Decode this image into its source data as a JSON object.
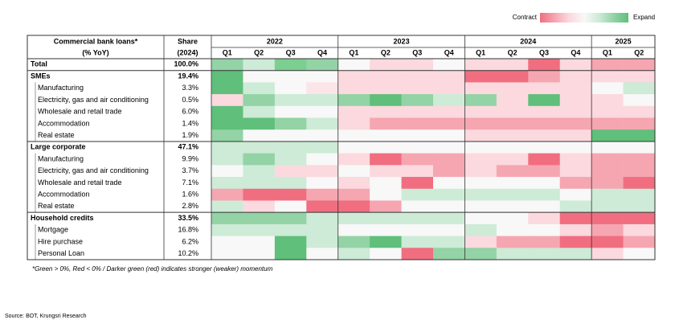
{
  "legend": {
    "left": "Contract",
    "right": "Expand",
    "colors": [
      "#f06e80",
      "#f6a6b1",
      "#fbd9de",
      "#f8f8f8",
      "#cdebd6",
      "#93d3a5",
      "#5fbf7b"
    ]
  },
  "table": {
    "header": {
      "title": [
        "Commercial bank loans*",
        "(% YoY)"
      ],
      "share": [
        "Share",
        "(2024)"
      ],
      "years": [
        {
          "year": "2022",
          "quarters": [
            "Q1",
            "Q2",
            "Q3",
            "Q4"
          ]
        },
        {
          "year": "2023",
          "quarters": [
            "Q1",
            "Q2",
            "Q3",
            "Q4"
          ]
        },
        {
          "year": "2024",
          "quarters": [
            "Q1",
            "Q2",
            "Q3",
            "Q4"
          ]
        },
        {
          "year": "2025",
          "quarters": [
            "Q1",
            "Q2"
          ]
        }
      ]
    },
    "rows": [
      {
        "label": "Total",
        "share": "100.0%",
        "group": true,
        "colors": [
          "#93d3a5",
          "#cdebd6",
          "#7ccf90",
          "#93d3a5",
          "#f8f8f8",
          "#fbd9de",
          "#fbd9de",
          "#f8f8f8",
          "#fbd9de",
          "#fbd9de",
          "#f06e80",
          "#fbd9de",
          "#f6a6b1",
          "#f6a6b1"
        ]
      },
      {
        "label": "SMEs",
        "share": "19.4%",
        "group": true,
        "colors": [
          "#5fbf7b",
          "#f8f8f8",
          "#f8f8f8",
          "#f8f8f8",
          "#fbd9de",
          "#fbd9de",
          "#fbd9de",
          "#fbd9de",
          "#f06e80",
          "#f06e80",
          "#f6a6b1",
          "#fbd9de",
          "#fbd9de",
          "#fbd9de"
        ]
      },
      {
        "label": "Manufacturing",
        "share": "3.3%",
        "group": false,
        "colors": [
          "#5fbf7b",
          "#cdebd6",
          "#f8f8f8",
          "#fbe5e8",
          "#fbd9de",
          "#fbd9de",
          "#fbd9de",
          "#fbd9de",
          "#fbd9de",
          "#fbd9de",
          "#fbd9de",
          "#fbd9de",
          "#f8f8f8",
          "#cdebd6"
        ]
      },
      {
        "label": "Electricity, gas and air conditioning",
        "share": "0.5%",
        "group": false,
        "colors": [
          "#fbd9de",
          "#93d3a5",
          "#cdebd6",
          "#cdebd6",
          "#93d3a5",
          "#5fbf7b",
          "#93d3a5",
          "#cdebd6",
          "#93d3a5",
          "#fbd9de",
          "#5fbf7b",
          "#fbd9de",
          "#fbd9de",
          "#f8f8f8"
        ]
      },
      {
        "label": "Wholesale and retail trade",
        "share": "6.0%",
        "group": false,
        "colors": [
          "#5fbf7b",
          "#cdebd6",
          "#f8f8f8",
          "#f8f8f8",
          "#fbd9de",
          "#fbd9de",
          "#fbd9de",
          "#fbd9de",
          "#fbd9de",
          "#fbd9de",
          "#fbd9de",
          "#fbd9de",
          "#fbd9de",
          "#fbd9de"
        ]
      },
      {
        "label": "Accommodation",
        "share": "1.4%",
        "group": false,
        "colors": [
          "#5fbf7b",
          "#5fbf7b",
          "#93d3a5",
          "#cdebd6",
          "#fbd9de",
          "#f6a6b1",
          "#f6a6b1",
          "#f6a6b1",
          "#f6a6b1",
          "#f6a6b1",
          "#f6a6b1",
          "#f6a6b1",
          "#f6a6b1",
          "#f6a6b1"
        ]
      },
      {
        "label": "Real estate",
        "share": "1.9%",
        "group": false,
        "colors": [
          "#93d3a5",
          "#f8f8f8",
          "#f8f8f8",
          "#f8f8f8",
          "#f8f8f8",
          "#f8f8f8",
          "#f8f8f8",
          "#f8f8f8",
          "#fbd9de",
          "#fbd9de",
          "#fbd9de",
          "#fbd9de",
          "#5fbf7b",
          "#5fbf7b"
        ]
      },
      {
        "label": "Large corporate",
        "share": "47.1%",
        "group": true,
        "colors": [
          "#cdebd6",
          "#cdebd6",
          "#cdebd6",
          "#cdebd6",
          "#f8f8f8",
          "#f8f8f8",
          "#f8f8f8",
          "#f8f8f8",
          "#f8f8f8",
          "#f8f8f8",
          "#f8f8f8",
          "#f8f8f8",
          "#f8f8f8",
          "#f8f8f8"
        ]
      },
      {
        "label": "Manufacturing",
        "share": "9.9%",
        "group": false,
        "colors": [
          "#cdebd6",
          "#93d3a5",
          "#cdebd6",
          "#f8f8f8",
          "#fbd9de",
          "#f06e80",
          "#f6a6b1",
          "#f6a6b1",
          "#fbd9de",
          "#fbd9de",
          "#f06e80",
          "#fbd9de",
          "#f6a6b1",
          "#f6a6b1"
        ]
      },
      {
        "label": "Electricity, gas and air conditioning",
        "share": "3.7%",
        "group": false,
        "colors": [
          "#f8f8f8",
          "#cdebd6",
          "#fbd9de",
          "#fbd9de",
          "#f8f8f8",
          "#fbd9de",
          "#fbd9de",
          "#f6a6b1",
          "#fbd9de",
          "#f6a6b1",
          "#f6a6b1",
          "#fbd9de",
          "#f6a6b1",
          "#f6a6b1"
        ]
      },
      {
        "label": "Wholesale and retail trade",
        "share": "7.1%",
        "group": false,
        "colors": [
          "#cdebd6",
          "#cdebd6",
          "#cdebd6",
          "#f8f8f8",
          "#fbd9de",
          "#f8f8f8",
          "#f06e80",
          "#f8f8f8",
          "#f8f8f8",
          "#f8f8f8",
          "#f8f8f8",
          "#f6a6b1",
          "#f6a6b1",
          "#f06e80"
        ]
      },
      {
        "label": "Accommodation",
        "share": "1.6%",
        "group": false,
        "colors": [
          "#f6a6b1",
          "#f06e80",
          "#f06e80",
          "#f6a6b1",
          "#f6a6b1",
          "#f8f8f8",
          "#cdebd6",
          "#cdebd6",
          "#cdebd6",
          "#cdebd6",
          "#cdebd6",
          "#f8f8f8",
          "#cdebd6",
          "#cdebd6"
        ]
      },
      {
        "label": "Real estate",
        "share": "2.8%",
        "group": false,
        "colors": [
          "#cdebd6",
          "#fbd9de",
          "#f8f8f8",
          "#f06e80",
          "#f06e80",
          "#f6a6b1",
          "#f8f8f8",
          "#f8f8f8",
          "#f8f8f8",
          "#f8f8f8",
          "#f8f8f8",
          "#cdebd6",
          "#cdebd6",
          "#cdebd6"
        ]
      },
      {
        "label": "Household credits",
        "share": "33.5%",
        "group": true,
        "colors": [
          "#93d3a5",
          "#93d3a5",
          "#93d3a5",
          "#cdebd6",
          "#cdebd6",
          "#cdebd6",
          "#cdebd6",
          "#cdebd6",
          "#f8f8f8",
          "#f8f8f8",
          "#fbd9de",
          "#f06e80",
          "#f06e80",
          "#f06e80"
        ]
      },
      {
        "label": "Mortgage",
        "share": "16.8%",
        "group": false,
        "colors": [
          "#cdebd6",
          "#cdebd6",
          "#cdebd6",
          "#cdebd6",
          "#f8f8f8",
          "#f8f8f8",
          "#f8f8f8",
          "#f8f8f8",
          "#cdebd6",
          "#f8f8f8",
          "#f8f8f8",
          "#fbd9de",
          "#f6a6b1",
          "#fbd9de"
        ]
      },
      {
        "label": "Hire purchase",
        "share": "6.2%",
        "group": false,
        "colors": [
          "#f8f8f8",
          "#f8f8f8",
          "#5fbf7b",
          "#cdebd6",
          "#93d3a5",
          "#5fbf7b",
          "#cdebd6",
          "#cdebd6",
          "#fbd9de",
          "#f6a6b1",
          "#f6a6b1",
          "#f06e80",
          "#f06e80",
          "#f6a6b1"
        ]
      },
      {
        "label": "Personal Loan",
        "share": "10.2%",
        "group": false,
        "colors": [
          "#f8f8f8",
          "#f8f8f8",
          "#5fbf7b",
          "#f8f8f8",
          "#cdebd6",
          "#f8f8f8",
          "#f06e80",
          "#93d3a5",
          "#93d3a5",
          "#cdebd6",
          "#cdebd6",
          "#cdebd6",
          "#fbd9de",
          "#f8f8f8"
        ]
      }
    ]
  },
  "footnote": "*Green > 0%, Red < 0% / Darker green (red) indicates stronger (weaker) momentum",
  "source": "Source: BOT, Krungsri Research"
}
